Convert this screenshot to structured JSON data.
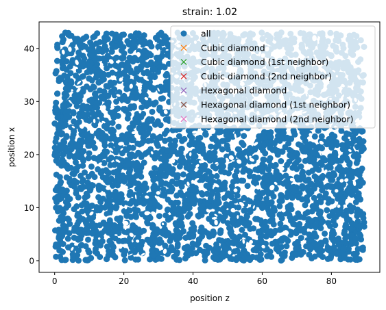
{
  "chart_data": {
    "type": "scatter",
    "title": "strain: 1.02",
    "xlabel": "position z",
    "ylabel": "position x",
    "xlim": [
      -4.5,
      94
    ],
    "ylim": [
      -2.2,
      45
    ],
    "xticks": [
      0,
      20,
      40,
      60,
      80
    ],
    "yticks": [
      0,
      10,
      20,
      30,
      40
    ],
    "xtick_labels": [
      "0",
      "20",
      "40",
      "60",
      "80"
    ],
    "ytick_labels": [
      "0",
      "10",
      "20",
      "30",
      "40"
    ],
    "grid": false,
    "legend_placement": "upper right",
    "point_fill": {
      "x_range": [
        0,
        89.5
      ],
      "y_range": [
        0,
        43
      ]
    },
    "series": [
      {
        "name": "all",
        "marker": "o",
        "color": "#1f77b4",
        "count_visible": "dense"
      },
      {
        "name": "Cubic diamond",
        "marker": "x",
        "color": "#ff7f0e",
        "values": []
      },
      {
        "name": "Cubic diamond (1st neighbor)",
        "marker": "x",
        "color": "#2ca02c",
        "values": []
      },
      {
        "name": "Cubic diamond (2nd neighbor)",
        "marker": "x",
        "color": "#d62728",
        "values": []
      },
      {
        "name": "Hexagonal diamond",
        "marker": "x",
        "color": "#9467bd",
        "values": []
      },
      {
        "name": "Hexagonal diamond (1st neighbor)",
        "marker": "x",
        "color": "#8c564b",
        "values": []
      },
      {
        "name": "Hexagonal diamond (2nd neighbor)",
        "marker": "x",
        "color": "#e377c2",
        "values": []
      }
    ]
  }
}
